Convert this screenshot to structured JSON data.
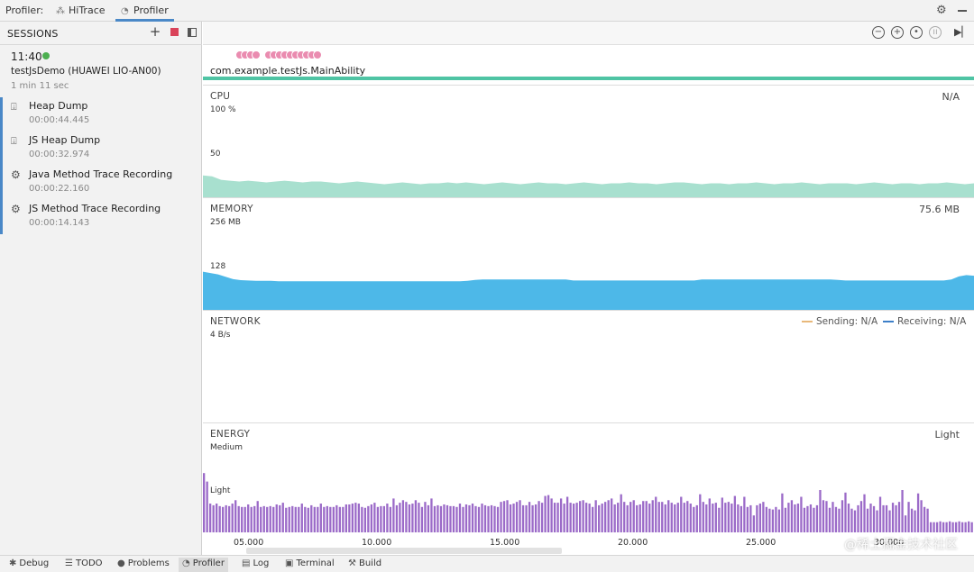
{
  "topbar": {
    "prefix": "Profiler:",
    "tabs": [
      {
        "label": "HiTrace",
        "icon": "hitrace-icon"
      },
      {
        "label": "Profiler",
        "icon": "profiler-gauge-icon"
      }
    ],
    "settings_icon": "gear-icon",
    "minimize_icon": "minimize-icon"
  },
  "sidebar": {
    "title": "SESSIONS",
    "add_icon": "plus-icon",
    "stop_icon": "stop-icon",
    "panel_icon": "panel-toggle-icon",
    "stop_color": "#d9435a",
    "session": {
      "time": "11:40",
      "status_color": "#4caf50",
      "name": "testJsDemo (HUAWEI LIO-AN00)",
      "duration": "1 min 11 sec"
    },
    "items": [
      {
        "name": "Heap Dump",
        "time": "00:00:44.445",
        "icon": "heap-dump-icon"
      },
      {
        "name": "JS Heap Dump",
        "time": "00:00:32.974",
        "icon": "heap-dump-icon"
      },
      {
        "name": "Java Method Trace Recording",
        "time": "00:00:22.160",
        "icon": "gear-icon"
      },
      {
        "name": "JS Method Trace Recording",
        "time": "00:00:14.143",
        "icon": "gear-icon"
      }
    ]
  },
  "toolbar": {
    "buttons": [
      "zoom-out-icon",
      "zoom-in-icon",
      "reset-zoom-icon",
      "pause-icon",
      "go-live-icon"
    ]
  },
  "events": {
    "process": "com.example.testJs.MainAbility",
    "marker_color": "#ea8cb0",
    "line_color": "#4fc4a4"
  },
  "cpu": {
    "title": "CPU",
    "value": "N/A",
    "ticks": [
      "100 %",
      "50"
    ],
    "color": "#a8e0cf",
    "series": [
      25,
      24,
      20,
      19,
      18,
      19,
      18,
      17,
      18,
      19,
      18,
      17,
      18,
      18,
      17,
      16,
      17,
      18,
      17,
      16,
      15,
      16,
      17,
      16,
      15,
      16,
      16,
      17,
      16,
      17,
      16,
      15,
      16,
      17,
      16,
      15,
      16,
      17,
      16,
      16,
      15,
      16,
      17,
      16,
      15,
      16,
      16,
      17,
      16,
      16,
      15,
      16,
      17,
      17,
      16,
      15,
      16,
      16,
      15,
      16,
      16,
      17,
      16,
      15,
      16,
      16,
      17,
      16,
      15,
      16,
      16,
      16,
      15,
      16,
      17,
      16,
      15,
      16,
      16,
      15,
      16,
      16,
      17,
      16,
      15,
      16
    ]
  },
  "memory": {
    "title": "MEMORY",
    "value": "75.6 MB",
    "ticks": [
      "256 MB",
      "128"
    ],
    "color": "#4db8e8",
    "series": [
      112,
      108,
      104,
      97,
      90,
      87,
      86,
      85,
      85,
      85,
      84,
      84,
      84,
      84,
      84,
      84,
      84,
      84,
      84,
      84,
      84,
      84,
      84,
      84,
      84,
      84,
      84,
      84,
      84,
      84,
      84,
      84,
      84,
      84,
      84,
      85,
      88,
      89,
      89,
      89,
      89,
      89,
      89,
      89,
      89,
      89,
      89,
      89,
      89,
      86,
      86,
      86,
      86,
      86,
      86,
      86,
      86,
      86,
      86,
      86,
      86,
      86,
      86,
      86,
      86,
      86,
      89,
      89,
      89,
      89,
      89,
      89,
      89,
      89,
      89,
      89,
      89,
      89,
      89,
      89,
      89,
      89,
      89,
      89,
      88,
      86,
      86,
      86,
      86,
      86,
      86,
      86,
      86,
      86,
      86,
      86,
      86,
      86,
      86,
      89,
      98,
      102,
      100
    ]
  },
  "network": {
    "title": "NETWORK",
    "tick": "4 B/s",
    "legend": [
      {
        "label": "Sending: N/A",
        "color": "#e8b87a"
      },
      {
        "label": "Receiving: N/A",
        "color": "#3d7fc8"
      }
    ]
  },
  "energy": {
    "title": "ENERGY",
    "value": "Light",
    "ticks": [
      "Medium",
      "Light"
    ],
    "color": "#9b6ac8",
    "bars": [
      0.7,
      0.6,
      0.34,
      0.32,
      0.34,
      0.31,
      0.3,
      0.32,
      0.31,
      0.34,
      0.38,
      0.31,
      0.3,
      0.3,
      0.33,
      0.3,
      0.31,
      0.37,
      0.3,
      0.31,
      0.3,
      0.31,
      0.3,
      0.33,
      0.32,
      0.35,
      0.29,
      0.3,
      0.31,
      0.3,
      0.3,
      0.34,
      0.3,
      0.29,
      0.32,
      0.3,
      0.3,
      0.34,
      0.3,
      0.31,
      0.3,
      0.3,
      0.32,
      0.3,
      0.3,
      0.33,
      0.33,
      0.34,
      0.35,
      0.34,
      0.3,
      0.29,
      0.31,
      0.33,
      0.35,
      0.3,
      0.31,
      0.31,
      0.34,
      0.3,
      0.4,
      0.32,
      0.35,
      0.38,
      0.36,
      0.33,
      0.34,
      0.38,
      0.35,
      0.3,
      0.36,
      0.32,
      0.4,
      0.31,
      0.32,
      0.31,
      0.33,
      0.32,
      0.31,
      0.31,
      0.3,
      0.34,
      0.3,
      0.33,
      0.32,
      0.34,
      0.31,
      0.3,
      0.34,
      0.32,
      0.31,
      0.32,
      0.31,
      0.3,
      0.36,
      0.37,
      0.38,
      0.33,
      0.34,
      0.36,
      0.38,
      0.32,
      0.32,
      0.36,
      0.32,
      0.33,
      0.37,
      0.35,
      0.43,
      0.44,
      0.4,
      0.35,
      0.35,
      0.4,
      0.34,
      0.42,
      0.35,
      0.34,
      0.35,
      0.37,
      0.38,
      0.35,
      0.34,
      0.3,
      0.38,
      0.32,
      0.34,
      0.36,
      0.38,
      0.4,
      0.33,
      0.35,
      0.45,
      0.36,
      0.32,
      0.36,
      0.38,
      0.32,
      0.33,
      0.37,
      0.37,
      0.34,
      0.38,
      0.42,
      0.36,
      0.36,
      0.33,
      0.38,
      0.35,
      0.33,
      0.35,
      0.42,
      0.35,
      0.37,
      0.34,
      0.3,
      0.32,
      0.45,
      0.36,
      0.33,
      0.4,
      0.34,
      0.35,
      0.29,
      0.41,
      0.35,
      0.36,
      0.34,
      0.43,
      0.33,
      0.31,
      0.42,
      0.3,
      0.32,
      0.2,
      0.32,
      0.34,
      0.36,
      0.3,
      0.28,
      0.27,
      0.3,
      0.27,
      0.46,
      0.29,
      0.35,
      0.38,
      0.33,
      0.34,
      0.42,
      0.29,
      0.31,
      0.33,
      0.29,
      0.32,
      0.5,
      0.38,
      0.37,
      0.29,
      0.36,
      0.3,
      0.28,
      0.38,
      0.47,
      0.34,
      0.28,
      0.26,
      0.32,
      0.37,
      0.45,
      0.28,
      0.34,
      0.31,
      0.26,
      0.42,
      0.32,
      0.32,
      0.26,
      0.35,
      0.32,
      0.36,
      0.5,
      0.2,
      0.36,
      0.28,
      0.26,
      0.46,
      0.38,
      0.3,
      0.28,
      0.12,
      0.12,
      0.12,
      0.13,
      0.12,
      0.12,
      0.13,
      0.12,
      0.12,
      0.13,
      0.12,
      0.12,
      0.13,
      0.12
    ]
  },
  "axis": {
    "labels": [
      "05.000",
      "10.000",
      "15.000",
      "20.000",
      "25.000",
      "30.000"
    ]
  },
  "bottombar": {
    "buttons": [
      {
        "label": "Debug",
        "icon": "bug-icon"
      },
      {
        "label": "TODO",
        "icon": "list-icon"
      },
      {
        "label": "Problems",
        "icon": "info-icon"
      },
      {
        "label": "Profiler",
        "icon": "profiler-gauge-icon"
      },
      {
        "label": "Log",
        "icon": "log-icon"
      },
      {
        "label": "Terminal",
        "icon": "terminal-icon"
      },
      {
        "label": "Build",
        "icon": "hammer-icon"
      }
    ]
  },
  "watermark": "@稀土掘金技术社区"
}
